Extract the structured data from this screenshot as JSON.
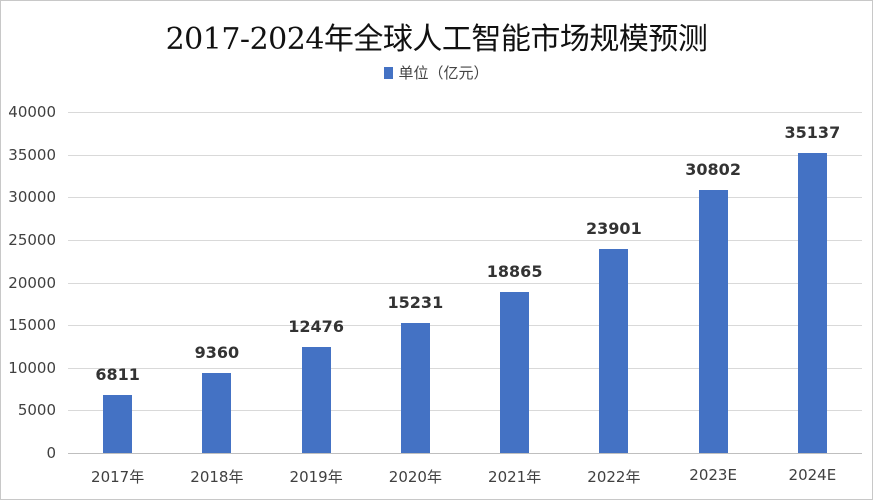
{
  "chart_data": {
    "type": "bar",
    "title": "2017-2024年全球人工智能市场规模预测",
    "legend": [
      "单位（亿元）"
    ],
    "legend_position": "top",
    "xlabel": "",
    "ylabel": "",
    "categories": [
      "2017年",
      "2018年",
      "2019年",
      "2020年",
      "2021年",
      "2022年",
      "2023E",
      "2024E"
    ],
    "series": [
      {
        "name": "单位（亿元）",
        "values": [
          6811,
          9360,
          12476,
          15231,
          18865,
          23901,
          30802,
          35137
        ],
        "color": "#4472C4"
      }
    ],
    "data_labels": [
      "6811",
      "9360",
      "12476",
      "15231",
      "18865",
      "23901",
      "30802",
      "35137"
    ],
    "ylim": [
      0,
      40000
    ],
    "yticks": [
      "0",
      "5000",
      "10000",
      "15000",
      "20000",
      "25000",
      "30000",
      "35000",
      "40000"
    ],
    "grid": true
  }
}
